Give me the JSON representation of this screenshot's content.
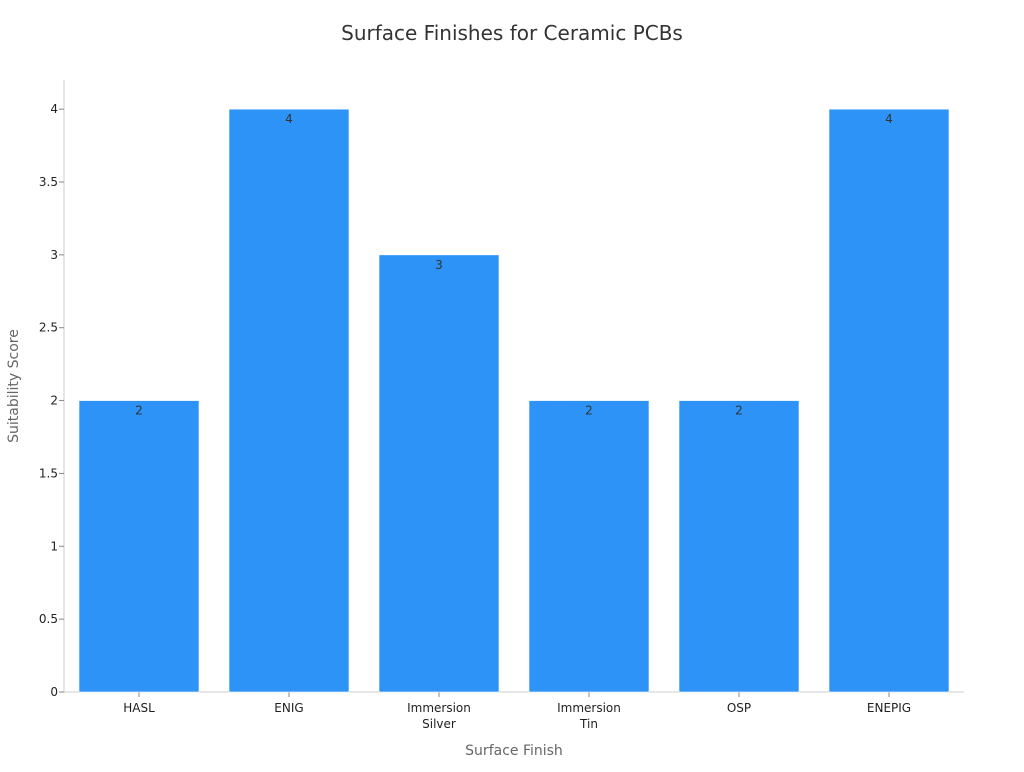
{
  "chart_data": {
    "type": "bar",
    "title": "Surface Finishes for Ceramic PCBs",
    "xlabel": "Surface Finish",
    "ylabel": "Suitability Score",
    "categories": [
      [
        "HASL"
      ],
      [
        "ENIG"
      ],
      [
        "Immersion",
        "Silver"
      ],
      [
        "Immersion",
        "Tin"
      ],
      [
        "OSP"
      ],
      [
        "ENEPIG"
      ]
    ],
    "values": [
      2,
      4,
      3,
      2,
      2,
      4
    ],
    "data_labels": [
      "2",
      "4",
      "3",
      "2",
      "2",
      "4"
    ],
    "ylim": [
      0,
      4.2
    ],
    "yticks": [
      0,
      0.5,
      1,
      1.5,
      2,
      2.5,
      3,
      3.5,
      4
    ],
    "ytick_labels": [
      "0",
      "0.5",
      "1",
      "1.5",
      "2",
      "2.5",
      "3",
      "3.5",
      "4"
    ],
    "grid": false,
    "colors": {
      "bar": "#2e93f6",
      "bar_edge": "#ffffff",
      "axis": "#cccccc",
      "title": "#333333",
      "axis_title": "#666666"
    }
  }
}
